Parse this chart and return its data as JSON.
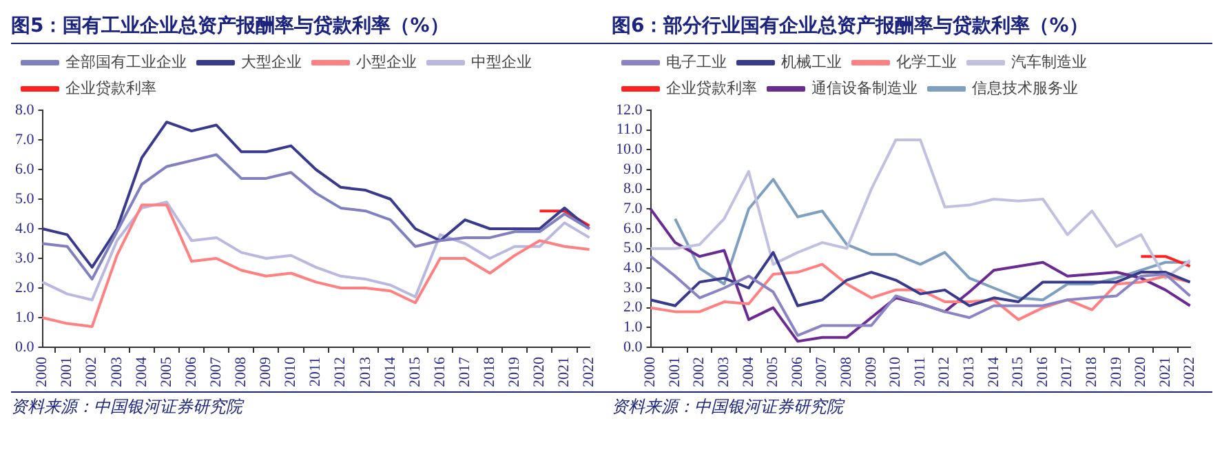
{
  "chart_data": [
    {
      "type": "line",
      "title": "图5：国有工业企业总资产报酬率与贷款利率（%）",
      "categories": [
        "2000",
        "2001",
        "2002",
        "2003",
        "2004",
        "2005",
        "2006",
        "2007",
        "2008",
        "2009",
        "2010",
        "2011",
        "2012",
        "2013",
        "2014",
        "2015",
        "2016",
        "2017",
        "2018",
        "2019",
        "2020",
        "2021",
        "2022"
      ],
      "series": [
        {
          "name": "全部国有工业企业",
          "color": "#8080c0",
          "values": [
            3.5,
            3.4,
            2.3,
            3.9,
            5.5,
            6.1,
            6.3,
            6.5,
            5.7,
            5.7,
            5.9,
            5.2,
            4.7,
            4.6,
            4.3,
            3.4,
            3.6,
            3.7,
            3.7,
            3.9,
            3.9,
            4.5,
            4.0
          ]
        },
        {
          "name": "大型企业",
          "color": "#3a3a8c",
          "values": [
            4.0,
            3.8,
            2.7,
            4.0,
            6.4,
            7.6,
            7.3,
            7.5,
            6.6,
            6.6,
            6.8,
            6.0,
            5.4,
            5.3,
            5.0,
            4.0,
            3.6,
            4.3,
            4.0,
            4.0,
            4.0,
            4.7,
            4.0
          ]
        },
        {
          "name": "小型企业",
          "color": "#ff8080",
          "values": [
            1.0,
            0.8,
            0.7,
            3.1,
            4.8,
            4.8,
            2.9,
            3.0,
            2.6,
            2.4,
            2.5,
            2.2,
            2.0,
            2.0,
            1.9,
            1.5,
            3.0,
            3.0,
            2.5,
            3.1,
            3.6,
            3.4,
            3.3
          ]
        },
        {
          "name": "中型企业",
          "color": "#b8b8e0",
          "values": [
            2.2,
            1.8,
            1.6,
            3.6,
            4.7,
            4.9,
            3.6,
            3.7,
            3.2,
            3.0,
            3.1,
            2.7,
            2.4,
            2.3,
            2.1,
            1.7,
            3.8,
            3.5,
            3.0,
            3.4,
            3.4,
            4.2,
            3.7
          ]
        },
        {
          "name": "企业贷款利率",
          "color": "#ff2020",
          "values": [
            null,
            null,
            null,
            null,
            null,
            null,
            null,
            null,
            null,
            null,
            null,
            null,
            null,
            null,
            null,
            null,
            null,
            null,
            null,
            null,
            4.6,
            4.6,
            4.1
          ]
        }
      ],
      "ylim": [
        0,
        8
      ],
      "yticks": [
        {
          "value": 0,
          "label": "0.0"
        },
        {
          "value": 1,
          "label": "1.0"
        },
        {
          "value": 2,
          "label": "2.0"
        },
        {
          "value": 3,
          "label": "3.0"
        },
        {
          "value": 4,
          "label": "4.0"
        },
        {
          "value": 5,
          "label": "5.0"
        },
        {
          "value": 6,
          "label": "6.0"
        },
        {
          "value": 7,
          "label": "7.0"
        },
        {
          "value": 8,
          "label": "8.0"
        }
      ],
      "grid": false,
      "legend": "top",
      "annotations": [
        "资料来源：中国银河证券研究院"
      ]
    },
    {
      "type": "line",
      "title": "图6：部分行业国有企业总资产报酬率与贷款利率（%）",
      "categories": [
        "2000",
        "2001",
        "2002",
        "2003",
        "2004",
        "2005",
        "2006",
        "2007",
        "2008",
        "2009",
        "2010",
        "2011",
        "2012",
        "2013",
        "2014",
        "2015",
        "2016",
        "2017",
        "2018",
        "2019",
        "2020",
        "2021",
        "2022"
      ],
      "series": [
        {
          "name": "电子工业",
          "color": "#8a84c4",
          "values": [
            4.6,
            3.6,
            2.5,
            3.0,
            3.6,
            2.8,
            0.6,
            1.1,
            1.1,
            1.1,
            2.6,
            2.2,
            1.8,
            1.5,
            2.1,
            2.1,
            2.1,
            2.4,
            2.5,
            2.6,
            3.6,
            3.7,
            2.6
          ]
        },
        {
          "name": "机械工业",
          "color": "#3a3a8c",
          "values": [
            2.4,
            2.1,
            3.3,
            3.5,
            3.0,
            4.8,
            2.1,
            2.4,
            3.4,
            3.8,
            3.4,
            2.7,
            2.9,
            2.1,
            2.5,
            2.3,
            3.3,
            3.3,
            3.3,
            3.3,
            3.8,
            3.8,
            3.3
          ]
        },
        {
          "name": "化学工业",
          "color": "#ff8080",
          "values": [
            2.0,
            1.8,
            1.8,
            2.3,
            2.2,
            3.7,
            3.8,
            4.2,
            3.2,
            2.5,
            2.9,
            2.9,
            2.3,
            2.3,
            2.4,
            1.4,
            2.0,
            2.4,
            1.9,
            3.2,
            3.3,
            3.6,
            3.3
          ]
        },
        {
          "name": "汽车制造业",
          "color": "#c0c0e0",
          "values": [
            5.0,
            5.0,
            5.2,
            6.5,
            8.9,
            4.2,
            4.8,
            5.3,
            5.0,
            8.0,
            10.5,
            10.5,
            7.1,
            7.2,
            7.5,
            7.4,
            7.5,
            5.7,
            6.9,
            5.1,
            5.7,
            3.5,
            4.4
          ]
        },
        {
          "name": "企业贷款利率",
          "color": "#ff2020",
          "values": [
            null,
            null,
            null,
            null,
            null,
            null,
            null,
            null,
            null,
            null,
            null,
            null,
            null,
            null,
            null,
            null,
            null,
            null,
            null,
            null,
            4.6,
            4.6,
            4.1
          ]
        },
        {
          "name": "通信设备制造业",
          "color": "#6a2a90",
          "values": [
            7.0,
            5.3,
            4.6,
            4.9,
            1.4,
            2.0,
            0.3,
            0.5,
            0.5,
            1.5,
            2.5,
            2.2,
            1.8,
            2.8,
            3.9,
            4.1,
            4.3,
            3.6,
            3.7,
            3.8,
            3.5,
            2.9,
            2.1
          ]
        },
        {
          "name": "信息技术服务业",
          "color": "#7f9fc0",
          "values": [
            null,
            6.5,
            4.0,
            3.2,
            7.0,
            8.5,
            6.6,
            6.9,
            5.2,
            4.7,
            4.7,
            4.2,
            4.8,
            3.5,
            3.0,
            2.5,
            2.4,
            3.2,
            3.2,
            3.5,
            3.9,
            4.3,
            4.3
          ]
        }
      ],
      "ylim": [
        0,
        12
      ],
      "yticks": [
        {
          "value": 0,
          "label": "0.0"
        },
        {
          "value": 1,
          "label": "1.0"
        },
        {
          "value": 2,
          "label": "2.0"
        },
        {
          "value": 3,
          "label": "3.0"
        },
        {
          "value": 4,
          "label": "4.0"
        },
        {
          "value": 5,
          "label": "5.0"
        },
        {
          "value": 6,
          "label": "6.0"
        },
        {
          "value": 7,
          "label": "7.0"
        },
        {
          "value": 8,
          "label": "8.0"
        },
        {
          "value": 9,
          "label": "9.0"
        },
        {
          "value": 10,
          "label": "10.0"
        },
        {
          "value": 11,
          "label": "11.0"
        },
        {
          "value": 12,
          "label": "12.0"
        }
      ],
      "grid": false,
      "legend": "top",
      "annotations": [
        "资料来源：中国银河证券研究院"
      ]
    }
  ]
}
